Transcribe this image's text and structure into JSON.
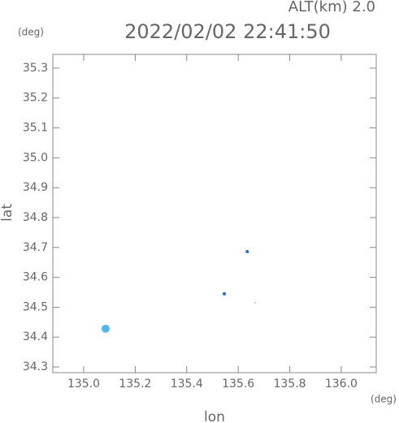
{
  "chart_data": {
    "type": "scatter",
    "title": "2022/02/02 22:41:50",
    "subtitle": "ALT(km) 2.0",
    "x_label": "lon",
    "y_label": "lat",
    "x_unit": "(deg)",
    "y_unit": "(deg)",
    "x": [
      135.085,
      135.546,
      135.635,
      135.665
    ],
    "y": [
      34.428,
      34.545,
      34.686,
      34.515
    ],
    "colors": [
      "#4fb8ee",
      "#2a64d8",
      "#2a64d8",
      "#9a9a9a"
    ],
    "xlim": [
      134.88,
      136.136
    ],
    "ylim": [
      34.281,
      35.346
    ],
    "xticks": [
      {
        "value": 135.0,
        "label": "135.0"
      },
      135.2,
      135.4,
      135.6,
      135.8,
      {
        "value": 136.0,
        "label": "136.0"
      }
    ],
    "yticks": [
      34.3,
      34.4,
      34.5,
      34.6,
      34.7,
      34.8,
      34.9,
      {
        "value": 35.0,
        "label": "35.0"
      },
      35.1,
      35.2,
      35.3
    ]
  }
}
